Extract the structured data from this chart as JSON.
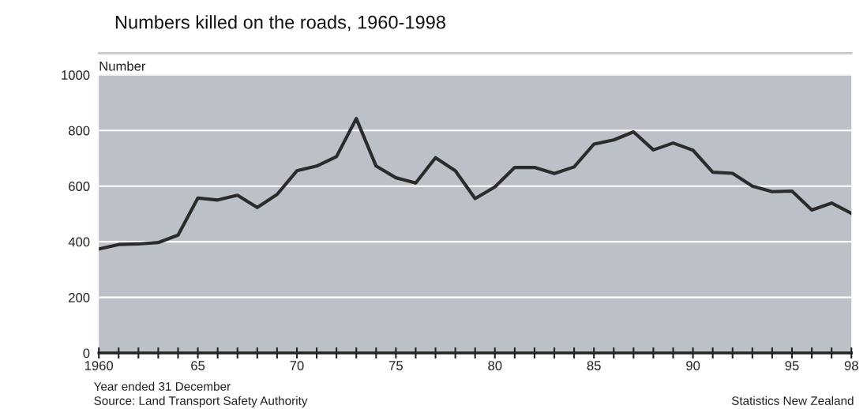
{
  "chart_data": {
    "type": "line",
    "title": "Numbers killed on the roads, 1960-1998",
    "ylabel": "Number",
    "xlabel": "Year ended 31 December",
    "annotations": [
      "Source: Land Transport Safety Authority",
      "Statistics New Zealand"
    ],
    "x": [
      1960,
      1961,
      1962,
      1963,
      1964,
      1965,
      1966,
      1967,
      1968,
      1969,
      1970,
      1971,
      1972,
      1973,
      1974,
      1975,
      1976,
      1977,
      1978,
      1979,
      1980,
      1981,
      1982,
      1983,
      1984,
      1985,
      1986,
      1987,
      1988,
      1989,
      1990,
      1991,
      1992,
      1993,
      1994,
      1995,
      1996,
      1997,
      1998
    ],
    "series": [
      {
        "color": "#2b2b2b",
        "values": [
          374,
          390,
          392,
          397,
          424,
          557,
          550,
          567,
          523,
          570,
          655,
          672,
          706,
          843,
          672,
          630,
          611,
          702,
          655,
          555,
          597,
          667,
          667,
          645,
          669,
          751,
          766,
          795,
          730,
          755,
          729,
          650,
          646,
          600,
          580,
          582,
          514,
          539,
          502
        ]
      }
    ],
    "xlim": [
      1960,
      1998
    ],
    "xticks": [
      {
        "value": 1960,
        "label": "1960"
      },
      {
        "value": 1961,
        "label": null
      },
      {
        "value": 1962,
        "label": null
      },
      {
        "value": 1963,
        "label": null
      },
      {
        "value": 1964,
        "label": null
      },
      {
        "value": 1965,
        "label": "65"
      },
      {
        "value": 1966,
        "label": null
      },
      {
        "value": 1967,
        "label": null
      },
      {
        "value": 1968,
        "label": null
      },
      {
        "value": 1969,
        "label": null
      },
      {
        "value": 1970,
        "label": "70"
      },
      {
        "value": 1971,
        "label": null
      },
      {
        "value": 1972,
        "label": null
      },
      {
        "value": 1973,
        "label": null
      },
      {
        "value": 1974,
        "label": null
      },
      {
        "value": 1975,
        "label": "75"
      },
      {
        "value": 1976,
        "label": null
      },
      {
        "value": 1977,
        "label": null
      },
      {
        "value": 1978,
        "label": null
      },
      {
        "value": 1979,
        "label": null
      },
      {
        "value": 1980,
        "label": "80"
      },
      {
        "value": 1981,
        "label": null
      },
      {
        "value": 1982,
        "label": null
      },
      {
        "value": 1983,
        "label": null
      },
      {
        "value": 1984,
        "label": null
      },
      {
        "value": 1985,
        "label": "85"
      },
      {
        "value": 1986,
        "label": null
      },
      {
        "value": 1987,
        "label": null
      },
      {
        "value": 1988,
        "label": null
      },
      {
        "value": 1989,
        "label": null
      },
      {
        "value": 1990,
        "label": "90"
      },
      {
        "value": 1991,
        "label": null
      },
      {
        "value": 1992,
        "label": null
      },
      {
        "value": 1993,
        "label": null
      },
      {
        "value": 1994,
        "label": null
      },
      {
        "value": 1995,
        "label": "95"
      },
      {
        "value": 1996,
        "label": null
      },
      {
        "value": 1997,
        "label": null
      },
      {
        "value": 1998,
        "label": "98"
      }
    ],
    "ylim": [
      0,
      1000
    ],
    "yticks": [
      0,
      200,
      400,
      600,
      800,
      1000
    ],
    "grid": "y",
    "marker": "none",
    "line_style": "solid",
    "legend": false
  }
}
